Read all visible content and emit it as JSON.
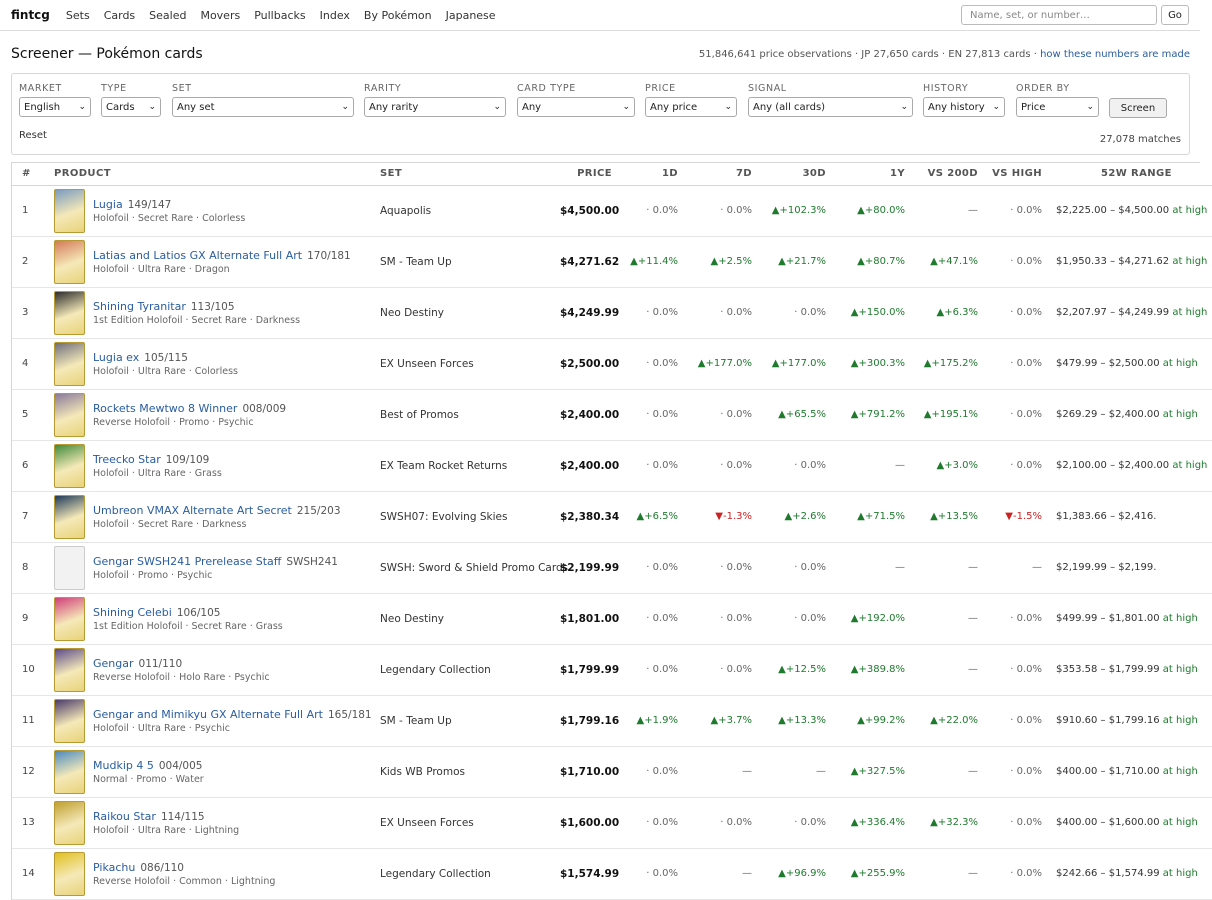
{
  "nav": {
    "logo": "fintcg",
    "links": [
      "Sets",
      "Cards",
      "Sealed",
      "Movers",
      "Pullbacks",
      "Index",
      "By Pokémon",
      "Japanese"
    ],
    "search_placeholder": "Name, set, or number…",
    "go_label": "Go"
  },
  "header": {
    "title": "Screener — Pokémon cards",
    "stats": "51,846,641 price observations · JP 27,650 cards · EN 27,813 cards · ",
    "stats_link": "how these numbers are made"
  },
  "filters": {
    "market": {
      "label": "Market",
      "value": "English"
    },
    "type": {
      "label": "Type",
      "value": "Cards"
    },
    "set": {
      "label": "Set",
      "value": "Any set"
    },
    "rarity": {
      "label": "Rarity",
      "value": "Any rarity"
    },
    "card_type": {
      "label": "Card type",
      "value": "Any"
    },
    "price": {
      "label": "Price",
      "value": "Any price"
    },
    "signal": {
      "label": "Signal",
      "value": "Any (all cards)"
    },
    "history": {
      "label": "History",
      "value": "Any history"
    },
    "order_by": {
      "label": "Order by",
      "value": "Price"
    },
    "screen_label": "Screen",
    "reset_label": "Reset",
    "matches": "27,078 matches"
  },
  "table": {
    "columns": [
      "#",
      "Product",
      "Set",
      "Price",
      "1D",
      "7D",
      "30D",
      "1Y",
      "VS 200D",
      "VS High",
      "52W Range"
    ],
    "rows": [
      {
        "rank": "1",
        "name": "Lugia",
        "number": "149/147",
        "sub": "Holofoil · Secret Rare · Colorless",
        "set": "Aquapolis",
        "price": "$4,500.00",
        "d1": "· 0.0%",
        "d7": "· 0.0%",
        "d30": "▲+102.3%",
        "y1": "▲+80.0%",
        "v200": "—",
        "vhigh": "· 0.0%",
        "range": "$2,225.00 – $4,500.00",
        "at_high": "at high",
        "thumb": "#7a9cc0"
      },
      {
        "rank": "2",
        "name": "Latias and Latios GX Alternate Full Art",
        "number": "170/181",
        "sub": "Holofoil · Ultra Rare · Dragon",
        "set": "SM - Team Up",
        "price": "$4,271.62",
        "d1": "▲+11.4%",
        "d7": "▲+2.5%",
        "d30": "▲+21.7%",
        "y1": "▲+80.7%",
        "v200": "▲+47.1%",
        "vhigh": "· 0.0%",
        "range": "$1,950.33 – $4,271.62",
        "at_high": "at high",
        "thumb": "#d47a5a"
      },
      {
        "rank": "3",
        "name": "Shining Tyranitar",
        "number": "113/105",
        "sub": "1st Edition Holofoil · Secret Rare · Darkness",
        "set": "Neo Destiny",
        "price": "$4,249.99",
        "d1": "· 0.0%",
        "d7": "· 0.0%",
        "d30": "· 0.0%",
        "y1": "▲+150.0%",
        "v200": "▲+6.3%",
        "vhigh": "· 0.0%",
        "range": "$2,207.97 – $4,249.99",
        "at_high": "at high",
        "thumb": "#2c2c2c"
      },
      {
        "rank": "4",
        "name": "Lugia ex",
        "number": "105/115",
        "sub": "Holofoil · Ultra Rare · Colorless",
        "set": "EX Unseen Forces",
        "price": "$2,500.00",
        "d1": "· 0.0%",
        "d7": "▲+177.0%",
        "d30": "▲+177.0%",
        "y1": "▲+300.3%",
        "v200": "▲+175.2%",
        "vhigh": "· 0.0%",
        "range": "$479.99 – $2,500.00",
        "at_high": "at high",
        "thumb": "#6d6d7d"
      },
      {
        "rank": "5",
        "name": "Rockets Mewtwo 8 Winner",
        "number": "008/009",
        "sub": "Reverse Holofoil · Promo · Psychic",
        "set": "Best of Promos",
        "price": "$2,400.00",
        "d1": "· 0.0%",
        "d7": "· 0.0%",
        "d30": "▲+65.5%",
        "y1": "▲+791.2%",
        "v200": "▲+195.1%",
        "vhigh": "· 0.0%",
        "range": "$269.29 – $2,400.00",
        "at_high": "at high",
        "thumb": "#8a7a9a"
      },
      {
        "rank": "6",
        "name": "Treecko Star",
        "number": "109/109",
        "sub": "Holofoil · Ultra Rare · Grass",
        "set": "EX Team Rocket Returns",
        "price": "$2,400.00",
        "d1": "· 0.0%",
        "d7": "· 0.0%",
        "d30": "· 0.0%",
        "y1": "—",
        "v200": "▲+3.0%",
        "vhigh": "· 0.0%",
        "range": "$2,100.00 – $2,400.00",
        "at_high": "at high",
        "thumb": "#3f8a3a"
      },
      {
        "rank": "7",
        "name": "Umbreon VMAX Alternate Art Secret",
        "number": "215/203",
        "sub": "Holofoil · Secret Rare · Darkness",
        "set": "SWSH07: Evolving Skies",
        "price": "$2,380.34",
        "d1": "▲+6.5%",
        "d7": "▼-1.3%",
        "d30": "▲+2.6%",
        "y1": "▲+71.5%",
        "v200": "▲+13.5%",
        "vhigh": "▼-1.5%",
        "range": "$1,383.66 – $2,416.",
        "at_high": "",
        "thumb": "#1e3a5a"
      },
      {
        "rank": "8",
        "name": "Gengar SWSH241 Prerelease Staff",
        "number": "SWSH241",
        "sub": "Holofoil · Promo · Psychic",
        "set": "SWSH: Sword & Shield Promo Cards",
        "price": "$2,199.99",
        "d1": "· 0.0%",
        "d7": "· 0.0%",
        "d30": "· 0.0%",
        "y1": "—",
        "v200": "—",
        "vhigh": "—",
        "range": "$2,199.99 – $2,199.",
        "at_high": "",
        "thumb": ""
      },
      {
        "rank": "9",
        "name": "Shining Celebi",
        "number": "106/105",
        "sub": "1st Edition Holofoil · Secret Rare · Grass",
        "set": "Neo Destiny",
        "price": "$1,801.00",
        "d1": "· 0.0%",
        "d7": "· 0.0%",
        "d30": "· 0.0%",
        "y1": "▲+192.0%",
        "v200": "—",
        "vhigh": "· 0.0%",
        "range": "$499.99 – $1,801.00",
        "at_high": "at high",
        "thumb": "#d0407a"
      },
      {
        "rank": "10",
        "name": "Gengar",
        "number": "011/110",
        "sub": "Reverse Holofoil · Holo Rare · Psychic",
        "set": "Legendary Collection",
        "price": "$1,799.99",
        "d1": "· 0.0%",
        "d7": "· 0.0%",
        "d30": "▲+12.5%",
        "y1": "▲+389.8%",
        "v200": "—",
        "vhigh": "· 0.0%",
        "range": "$353.58 – $1,799.99",
        "at_high": "at high",
        "thumb": "#5a4a8a"
      },
      {
        "rank": "11",
        "name": "Gengar and Mimikyu GX Alternate Full Art",
        "number": "165/181",
        "sub": "Holofoil · Ultra Rare · Psychic",
        "set": "SM - Team Up",
        "price": "$1,799.16",
        "d1": "▲+1.9%",
        "d7": "▲+3.7%",
        "d30": "▲+13.3%",
        "y1": "▲+99.2%",
        "v200": "▲+22.0%",
        "vhigh": "· 0.0%",
        "range": "$910.60 – $1,799.16",
        "at_high": "at high",
        "thumb": "#4a3a6a"
      },
      {
        "rank": "12",
        "name": "Mudkip 4 5",
        "number": "004/005",
        "sub": "Normal · Promo · Water",
        "set": "Kids WB Promos",
        "price": "$1,710.00",
        "d1": "· 0.0%",
        "d7": "—",
        "d30": "—",
        "y1": "▲+327.5%",
        "v200": "—",
        "vhigh": "· 0.0%",
        "range": "$400.00 – $1,710.00",
        "at_high": "at high",
        "thumb": "#4a8ac0"
      },
      {
        "rank": "13",
        "name": "Raikou Star",
        "number": "114/115",
        "sub": "Holofoil · Ultra Rare · Lightning",
        "set": "EX Unseen Forces",
        "price": "$1,600.00",
        "d1": "· 0.0%",
        "d7": "· 0.0%",
        "d30": "· 0.0%",
        "y1": "▲+336.4%",
        "v200": "▲+32.3%",
        "vhigh": "· 0.0%",
        "range": "$400.00 – $1,600.00",
        "at_high": "at high",
        "thumb": "#c0a030"
      },
      {
        "rank": "14",
        "name": "Pikachu",
        "number": "086/110",
        "sub": "Reverse Holofoil · Common · Lightning",
        "set": "Legendary Collection",
        "price": "$1,574.99",
        "d1": "· 0.0%",
        "d7": "—",
        "d30": "▲+96.9%",
        "y1": "▲+255.9%",
        "v200": "—",
        "vhigh": "· 0.0%",
        "range": "$242.66 – $1,574.99",
        "at_high": "at high",
        "thumb": "#e0c020"
      }
    ]
  }
}
